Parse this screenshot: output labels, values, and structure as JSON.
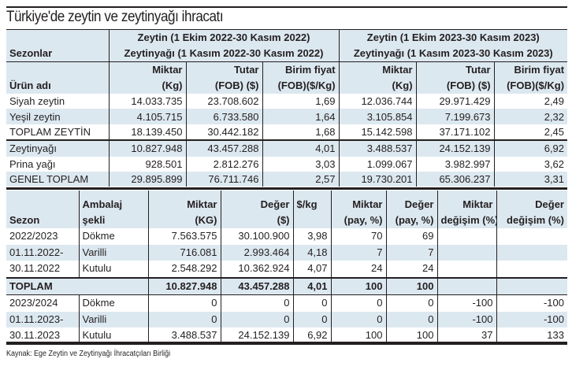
{
  "title": "Türkiye'de zeytin ve zeytinyağı ihracatı",
  "table1": {
    "season_label": "Sezonlar",
    "period1": [
      "Zeytin (1 Ekim 2022-30 Kasım 2022)",
      "Zeytinyağı (1 Kasım 2022-30 Kasım 2022)"
    ],
    "period2": [
      "Zeytin (1 Ekim 2023-30 Kasım 2023)",
      "Zeytinyağı (1 Kasım 2023-30 Kasım 2023)"
    ],
    "product_label": "Ürün adı",
    "cols": [
      [
        "Miktar",
        "(Kg)"
      ],
      [
        "Tutar",
        "(FOB) ($)"
      ],
      [
        "Birim fiyat",
        "(FOB)($/Kg)"
      ],
      [
        "Miktar",
        "(Kg)"
      ],
      [
        "Tutar",
        "(FOB) ($)"
      ],
      [
        "Birim fiyat",
        "(FOB)($/Kg)"
      ]
    ],
    "rows": [
      [
        "Siyah zeytin",
        "14.033.735",
        "23.708.602",
        "1,69",
        "12.036.744",
        "29.971.429",
        "2,49"
      ],
      [
        "Yeşil zeytin",
        "4.105.715",
        "6.733.580",
        "1,64",
        "3.105.854",
        "7.199.673",
        "2,32"
      ],
      [
        "TOPLAM ZEYTİN",
        "18.139.450",
        "30.442.182",
        "1,68",
        "15.142.598",
        "37.171.102",
        "2,45"
      ],
      [
        "Zeytinyağı",
        "10.827.948",
        "43.457.288",
        "4,01",
        "3.488.537",
        "24.152.139",
        "6,92"
      ],
      [
        "Prina yağı",
        "928.501",
        "2.812.276",
        "3,03",
        "1.099.067",
        "3.982.997",
        "3,62"
      ],
      [
        "GENEL TOPLAM",
        "29.895.899",
        "76.711.746",
        "2,57",
        "19.730.201",
        "65.306.237",
        "3,31"
      ]
    ]
  },
  "table2": {
    "cols": [
      [
        "",
        "Sezon"
      ],
      [
        "Ambalaj",
        "şekli"
      ],
      [
        "Miktar",
        "(KG)"
      ],
      [
        "Değer",
        "($)"
      ],
      [
        "$/kg",
        ""
      ],
      [
        "Miktar",
        "(pay, %)"
      ],
      [
        "Değer",
        "(pay, %)"
      ],
      [
        "Miktar",
        "değişim (%)"
      ],
      [
        "Değer",
        "değişim (%)"
      ]
    ],
    "rows": [
      [
        "2022/2023",
        "Dökme",
        "7.563.575",
        "30.100.900",
        "3,98",
        "70",
        "69",
        "",
        ""
      ],
      [
        "01.11.2022-",
        "Varilli",
        "716.081",
        "2.993.464",
        "4,18",
        "7",
        "7",
        "",
        ""
      ],
      [
        "30.11.2022",
        "Kutulu",
        "2.548.292",
        "10.362.924",
        "4,07",
        "24",
        "24",
        "",
        ""
      ],
      [
        "TOPLAM",
        "",
        "10.827.948",
        "43.457.288",
        "4,01",
        "100",
        "100",
        "",
        ""
      ],
      [
        "2023/2024",
        "Dökme",
        "0",
        "0",
        "0",
        "0",
        "0",
        "-100",
        "-100"
      ],
      [
        "01.11.2023-",
        "Varilli",
        "0",
        "0",
        "0",
        "0",
        "0",
        "-100",
        "-100"
      ],
      [
        "30.11.2023",
        "Kutulu",
        "3.488.537",
        "24.152.139",
        "6,92",
        "100",
        "100",
        "37",
        "133"
      ]
    ]
  },
  "source": "Kaynak: Ege Zeytin ve Zeytinyağı İhracatçıları Birliği"
}
